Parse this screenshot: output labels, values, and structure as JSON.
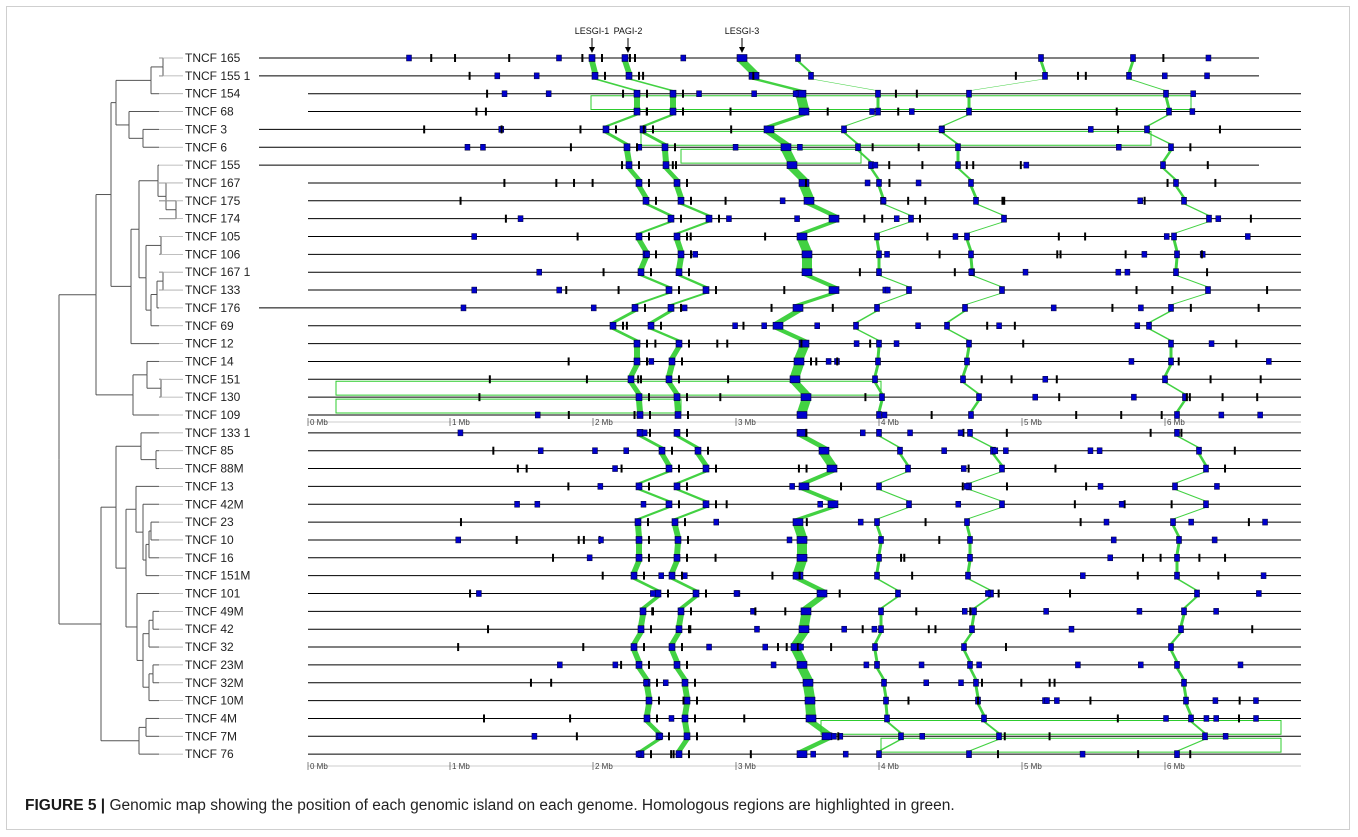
{
  "figure": {
    "caption_label": "FIGURE 5 |",
    "caption_text": " Genomic map showing the position of each genomic island on each genome. Homologous regions are highlighted in green.",
    "colors": {
      "island": "#0000cc",
      "island_edge": "#000033",
      "homology": "#2ecc2e",
      "line": "#000000",
      "tree": "#555555"
    }
  },
  "annotations": [
    "LESGI-1",
    "PAGI-2",
    "LESGI-3"
  ],
  "axis_labels": [
    "0 Mb",
    "1 Mb",
    "2 Mb",
    "3 Mb",
    "4 Mb",
    "5 Mb",
    "6 Mb"
  ],
  "genomes": [
    "TNCF 165",
    "TNCF 155 1",
    "TNCF 154",
    "TNCF 68",
    "TNCF 3",
    "TNCF 6",
    "TNCF 155",
    "TNCF 167",
    "TNCF 175",
    "TNCF 174",
    "TNCF 105",
    "TNCF 106",
    "TNCF 167 1",
    "TNCF 133",
    "TNCF 176",
    "TNCF 69",
    "TNCF 12",
    "TNCF 14",
    "TNCF 151",
    "TNCF 130",
    "TNCF 109",
    "TNCF 133 1",
    "TNCF 85",
    "TNCF 88M",
    "TNCF 13",
    "TNCF 42M",
    "TNCF 23",
    "TNCF 10",
    "TNCF 16",
    "TNCF 151M",
    "TNCF 101",
    "TNCF 49M",
    "TNCF 42",
    "TNCF 32",
    "TNCF 23M",
    "TNCF 32M",
    "TNCF 10M",
    "TNCF 4M",
    "TNCF 7M",
    "TNCF 76"
  ]
}
